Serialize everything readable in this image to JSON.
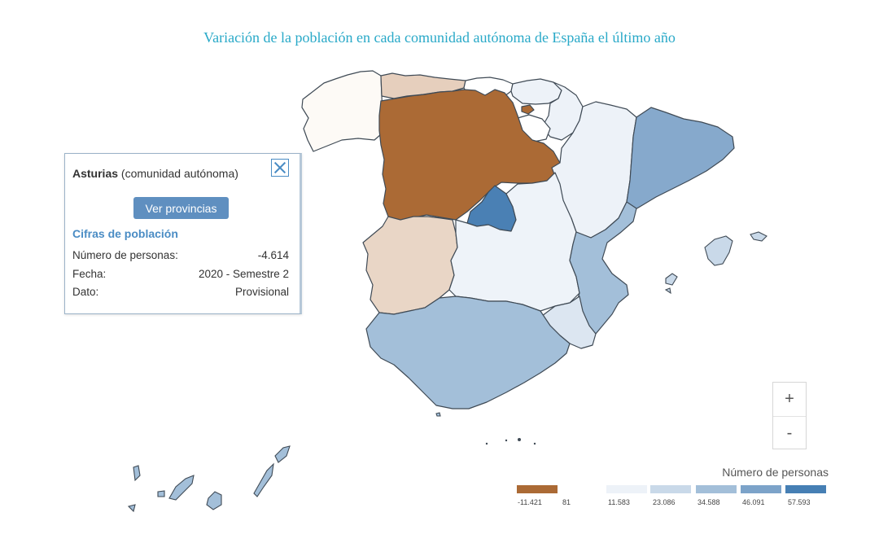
{
  "map": {
    "title": "Variación de la población en cada comunidad autónoma de España el último año"
  },
  "colors": {
    "title": "#29a9c8",
    "accent": "#4a8cc4",
    "button": "#5f8fc0",
    "neg_strong": "#ab6a35",
    "neg_light": "#e9d6c6",
    "pos_1": "#edf2f8",
    "pos_2": "#c9d9e9",
    "pos_3": "#a3bfd9",
    "pos_4": "#7ca3c9",
    "pos_5": "#467fb4"
  },
  "popup": {
    "region_name": "Asturias",
    "region_type": "(comunidad autónoma)",
    "button": "Ver provincias",
    "section": "Cifras de población",
    "rows": [
      {
        "label": "Número de personas:",
        "value": "-4.614"
      },
      {
        "label": "Fecha:",
        "value": "2020 - Semestre 2"
      },
      {
        "label": "Dato:",
        "value": "Provisional"
      }
    ],
    "close_icon": "close-icon"
  },
  "zoom": {
    "in_label": "+",
    "out_label": "-"
  },
  "legend": {
    "title": "Número de personas",
    "labels": [
      "-11.421",
      "81",
      "11.583",
      "23.086",
      "34.588",
      "46.091",
      "57.593"
    ]
  }
}
